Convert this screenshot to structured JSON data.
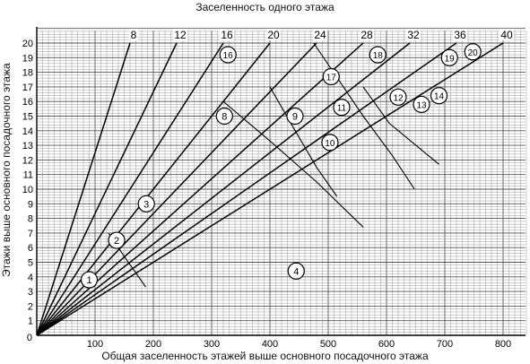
{
  "chart_data": {
    "type": "line",
    "title": "Заселенность одного этажа",
    "xlabel": "Общая заселенность этажей выше основного посадочного этажа",
    "ylabel": "Этажи выше основного посадочного этажа",
    "xlim": [
      0,
      860
    ],
    "ylim": [
      0,
      21
    ],
    "x_ticks": [
      100,
      200,
      300,
      400,
      500,
      600,
      700,
      800
    ],
    "y_ticks": [
      1,
      2,
      3,
      4,
      5,
      6,
      7,
      8,
      9,
      10,
      11,
      12,
      13,
      14,
      15,
      16,
      17,
      18,
      19,
      20
    ],
    "origin_label": "0",
    "grid": true,
    "series": [
      {
        "name": "8",
        "x": [
          0,
          160
        ],
        "y": [
          0,
          20
        ]
      },
      {
        "name": "12",
        "x": [
          0,
          240
        ],
        "y": [
          0,
          20
        ]
      },
      {
        "name": "16",
        "x": [
          0,
          320
        ],
        "y": [
          0,
          20
        ]
      },
      {
        "name": "20",
        "x": [
          0,
          400
        ],
        "y": [
          0,
          20
        ]
      },
      {
        "name": "24",
        "x": [
          0,
          480
        ],
        "y": [
          0,
          20
        ]
      },
      {
        "name": "28",
        "x": [
          0,
          560
        ],
        "y": [
          0,
          20
        ]
      },
      {
        "name": "32",
        "x": [
          0,
          640
        ],
        "y": [
          0,
          20
        ]
      },
      {
        "name": "36",
        "x": [
          0,
          720
        ],
        "y": [
          0,
          20
        ]
      },
      {
        "name": "40",
        "x": [
          0,
          800
        ],
        "y": [
          0,
          20
        ]
      }
    ],
    "zone_boundaries": [
      {
        "x": [
          123,
          150,
          187
        ],
        "y": [
          7,
          5.4,
          3.3
        ]
      },
      {
        "x": [
          400,
          436,
          480,
          515
        ],
        "y": [
          17,
          14.5,
          11.5,
          9.5
        ]
      },
      {
        "x": [
          475,
          560,
          610,
          648
        ],
        "y": [
          20,
          15,
          12.3,
          10
        ]
      },
      {
        "x": [
          560,
          605,
          690
        ],
        "y": [
          17,
          14.5,
          11.7
        ]
      },
      {
        "x": [
          320,
          400,
          480,
          560
        ],
        "y": [
          16,
          13.3,
          10.5,
          7.4
        ]
      }
    ],
    "annotations": [
      {
        "label": "1",
        "x": 90,
        "y": 3.8
      },
      {
        "label": "2",
        "x": 137,
        "y": 6.5
      },
      {
        "label": "3",
        "x": 188,
        "y": 9.0
      },
      {
        "label": "4",
        "x": 445,
        "y": 4.4
      },
      {
        "label": "8",
        "x": 322,
        "y": 15.0
      },
      {
        "label": "9",
        "x": 443,
        "y": 15.0
      },
      {
        "label": "10",
        "x": 503,
        "y": 13.2
      },
      {
        "label": "11",
        "x": 523,
        "y": 15.6
      },
      {
        "label": "12",
        "x": 620,
        "y": 16.3
      },
      {
        "label": "13",
        "x": 660,
        "y": 15.8
      },
      {
        "label": "14",
        "x": 690,
        "y": 16.4
      },
      {
        "label": "16",
        "x": 328,
        "y": 19.2
      },
      {
        "label": "17",
        "x": 505,
        "y": 17.7
      },
      {
        "label": "18",
        "x": 585,
        "y": 19.2
      },
      {
        "label": "19",
        "x": 708,
        "y": 19.0
      },
      {
        "label": "20",
        "x": 748,
        "y": 19.4
      }
    ]
  }
}
